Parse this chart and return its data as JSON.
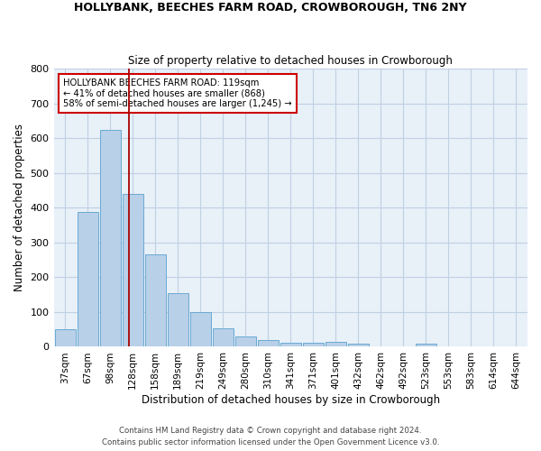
{
  "title1": "HOLLYBANK, BEECHES FARM ROAD, CROWBOROUGH, TN6 2NY",
  "title2": "Size of property relative to detached houses in Crowborough",
  "xlabel": "Distribution of detached houses by size in Crowborough",
  "ylabel": "Number of detached properties",
  "categories": [
    "37sqm",
    "67sqm",
    "98sqm",
    "128sqm",
    "158sqm",
    "189sqm",
    "219sqm",
    "249sqm",
    "280sqm",
    "310sqm",
    "341sqm",
    "371sqm",
    "401sqm",
    "432sqm",
    "462sqm",
    "492sqm",
    "523sqm",
    "553sqm",
    "583sqm",
    "614sqm",
    "644sqm"
  ],
  "values": [
    50,
    387,
    625,
    440,
    267,
    153,
    99,
    54,
    30,
    19,
    11,
    12,
    13,
    8,
    0,
    0,
    8,
    0,
    0,
    0,
    0
  ],
  "bar_color": "#b8d0e8",
  "bar_edge_color": "#6aaad4",
  "bg_color": "#e8f0f8",
  "grid_color": "#c0d0e4",
  "vline_x": 2.85,
  "vline_color": "#aa0000",
  "annotation_line1": "HOLLYBANK BEECHES FARM ROAD: 119sqm",
  "annotation_line2": "← 41% of detached houses are smaller (868)",
  "annotation_line3": "58% of semi-detached houses are larger (1,245) →",
  "footer1": "Contains HM Land Registry data © Crown copyright and database right 2024.",
  "footer2": "Contains public sector information licensed under the Open Government Licence v3.0.",
  "ylim": [
    0,
    800
  ],
  "yticks": [
    0,
    100,
    200,
    300,
    400,
    500,
    600,
    700,
    800
  ]
}
